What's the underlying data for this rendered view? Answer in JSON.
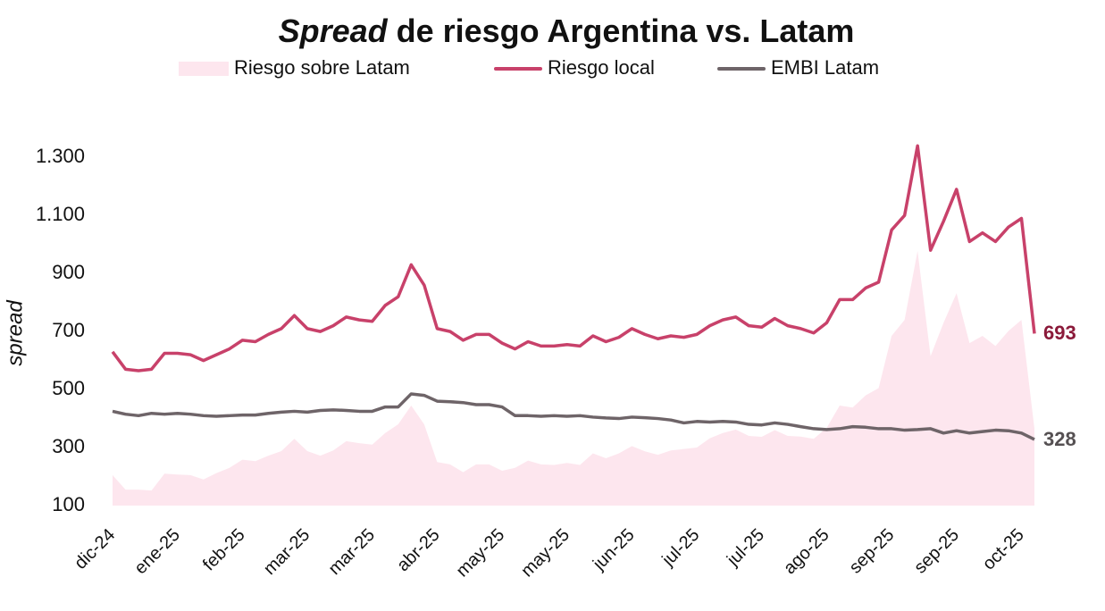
{
  "chart_data": {
    "type": "line",
    "title_parts": [
      "Spread",
      "de riesgo Argentina vs. Latam"
    ],
    "y_label": "spread",
    "categories": [
      "dic-24",
      null,
      null,
      null,
      null,
      "ene-25",
      null,
      null,
      null,
      null,
      "feb-25",
      null,
      null,
      null,
      null,
      "mar-25",
      null,
      null,
      null,
      null,
      "mar-25",
      null,
      null,
      null,
      null,
      "abr-25",
      null,
      null,
      null,
      null,
      "may-25",
      null,
      null,
      null,
      null,
      "may-25",
      null,
      null,
      null,
      null,
      "jun-25",
      null,
      null,
      null,
      null,
      "jul-25",
      null,
      null,
      null,
      null,
      "jul-25",
      null,
      null,
      null,
      null,
      "ago-25",
      null,
      null,
      null,
      null,
      "sep-25",
      null,
      null,
      null,
      null,
      "sep-25",
      null,
      null,
      null,
      null,
      "oct-25",
      null
    ],
    "series": [
      {
        "name": "Riesgo sobre Latam",
        "kind": "area",
        "color": "#fde6ee",
        "values": [
          205,
          155,
          155,
          152,
          210,
          207,
          205,
          190,
          212,
          230,
          258,
          253,
          272,
          288,
          330,
          288,
          272,
          290,
          322,
          315,
          310,
          350,
          380,
          445,
          380,
          250,
          242,
          215,
          242,
          242,
          220,
          230,
          255,
          242,
          240,
          247,
          240,
          280,
          263,
          280,
          305,
          287,
          275,
          290,
          295,
          300,
          332,
          350,
          362,
          340,
          337,
          360,
          340,
          338,
          330,
          368,
          445,
          438,
          480,
          505,
          685,
          740,
          978,
          615,
          730,
          832,
          660,
          685,
          650,
          702,
          740,
          365
        ]
      },
      {
        "name": "Riesgo local",
        "kind": "line",
        "color": "#c8416a",
        "label_color": "#8b1a3a",
        "values": [
          630,
          570,
          565,
          570,
          625,
          625,
          620,
          600,
          620,
          640,
          670,
          665,
          690,
          710,
          755,
          710,
          700,
          720,
          750,
          740,
          735,
          790,
          820,
          930,
          860,
          710,
          700,
          670,
          690,
          690,
          660,
          640,
          665,
          650,
          650,
          655,
          650,
          685,
          665,
          680,
          710,
          690,
          675,
          685,
          680,
          690,
          720,
          740,
          750,
          720,
          715,
          745,
          720,
          710,
          695,
          730,
          810,
          810,
          850,
          870,
          1050,
          1100,
          1340,
          980,
          1080,
          1190,
          1010,
          1040,
          1010,
          1060,
          1090,
          693
        ]
      },
      {
        "name": "EMBI Latam",
        "kind": "line",
        "color": "#6e6468",
        "label_color": "#555052",
        "values": [
          425,
          415,
          410,
          418,
          415,
          418,
          415,
          410,
          408,
          410,
          412,
          412,
          418,
          422,
          425,
          422,
          428,
          430,
          428,
          425,
          425,
          440,
          440,
          485,
          480,
          460,
          458,
          455,
          448,
          448,
          440,
          410,
          410,
          408,
          410,
          408,
          410,
          405,
          402,
          400,
          405,
          403,
          400,
          395,
          385,
          390,
          388,
          390,
          388,
          380,
          378,
          385,
          380,
          372,
          365,
          362,
          365,
          372,
          370,
          365,
          365,
          360,
          362,
          365,
          350,
          358,
          350,
          355,
          360,
          358,
          350,
          328
        ]
      }
    ],
    "ylim": [
      100,
      1350
    ],
    "yticks": [
      100,
      300,
      500,
      700,
      900,
      {
        "value": 1100,
        "label": "1.100"
      },
      {
        "value": 1300,
        "label": "1.300"
      }
    ],
    "grid": false,
    "legend": "top"
  }
}
